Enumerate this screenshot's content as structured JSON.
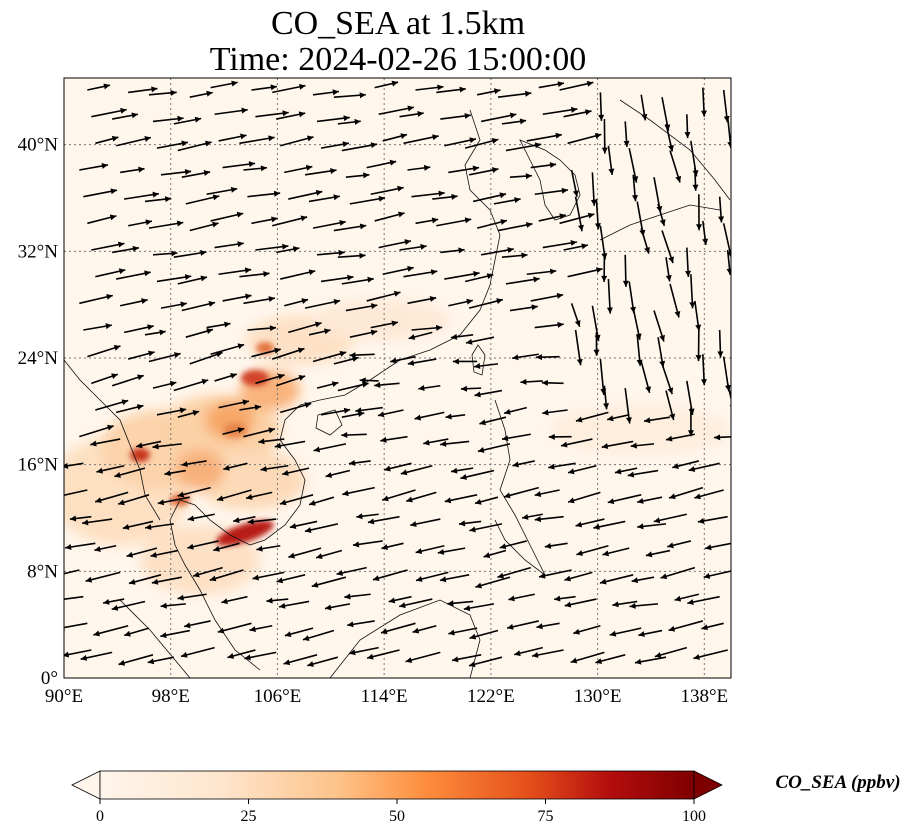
{
  "title": {
    "line1": "CO_SEA at 1.5km",
    "line2": "Time: 2024-02-26 15:00:00"
  },
  "map": {
    "projection": "PlateCarree",
    "lon_range": [
      90,
      140
    ],
    "lat_range": [
      0,
      45
    ],
    "lon_ticks": [
      {
        "value": 90,
        "label": "90°E"
      },
      {
        "value": 98,
        "label": "98°E"
      },
      {
        "value": 106,
        "label": "106°E"
      },
      {
        "value": 114,
        "label": "114°E"
      },
      {
        "value": 122,
        "label": "122°E"
      },
      {
        "value": 130,
        "label": "130°E"
      },
      {
        "value": 138,
        "label": "138°E"
      }
    ],
    "lat_ticks": [
      {
        "value": 0,
        "label": "0°"
      },
      {
        "value": 8,
        "label": "8°N"
      },
      {
        "value": 16,
        "label": "16°N"
      },
      {
        "value": 24,
        "label": "24°N"
      },
      {
        "value": 32,
        "label": "32°N"
      },
      {
        "value": 40,
        "label": "40°N"
      }
    ],
    "gridlines": true,
    "field": "CO_SEA",
    "vectors": "wind"
  },
  "colorbar": {
    "label": "CO_SEA (ppbv)",
    "min": 0,
    "max": 100,
    "extend": "both",
    "ticks": [
      {
        "value": 0,
        "label": "0"
      },
      {
        "value": 25,
        "label": "25"
      },
      {
        "value": 50,
        "label": "50"
      },
      {
        "value": 75,
        "label": "75"
      },
      {
        "value": 100,
        "label": "100"
      }
    ],
    "colormap": [
      "#fff5eb",
      "#fdd0a2",
      "#fd8d3c",
      "#d94801",
      "#a50f15",
      "#67000d"
    ]
  }
}
